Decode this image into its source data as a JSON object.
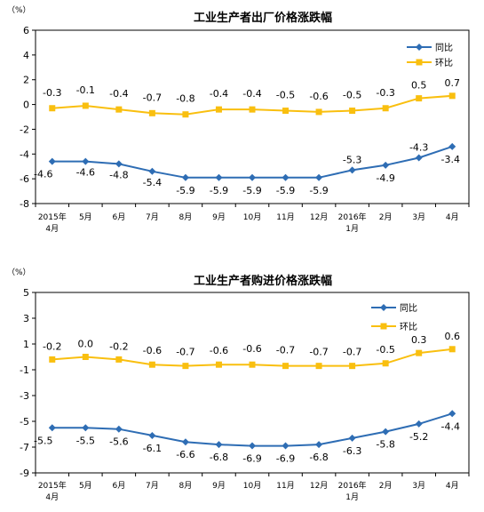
{
  "chart_data": [
    {
      "type": "line",
      "title": "工业生产者出厂价格涨跌幅",
      "unit_label": "（%）",
      "categories": [
        "2015年|4月",
        "5月",
        "6月",
        "7月",
        "8月",
        "9月",
        "10月",
        "11月",
        "12月",
        "2016年|1月",
        "2月",
        "3月",
        "4月"
      ],
      "ylim": [
        -8,
        6
      ],
      "yticks": [
        6,
        4,
        2,
        0,
        -2,
        -4,
        -6,
        -8
      ],
      "grid": false,
      "legend_position": "top-right",
      "series": [
        {
          "name": "同比",
          "color": "#2E6DB4",
          "values": [
            -4.6,
            -4.6,
            -4.8,
            -5.4,
            -5.9,
            -5.9,
            -5.9,
            -5.9,
            -5.9,
            -5.3,
            -4.9,
            -4.3,
            -3.4
          ],
          "labels": [
            "-4.6",
            "-4.6",
            "-4.8",
            "-5.4",
            "-5.9",
            "-5.9",
            "-5.9",
            "-5.9",
            "-5.9",
            "-5.3",
            "-4.9",
            "-4.3",
            "-3.4"
          ]
        },
        {
          "name": "环比",
          "color": "#F9BF0F",
          "values": [
            -0.3,
            -0.1,
            -0.4,
            -0.7,
            -0.8,
            -0.4,
            -0.4,
            -0.5,
            -0.6,
            -0.5,
            -0.3,
            0.5,
            0.7
          ],
          "labels": [
            "-0.3",
            "-0.1",
            "-0.4",
            "-0.7",
            "-0.8",
            "-0.4",
            "-0.4",
            "-0.5",
            "-0.6",
            "-0.5",
            "-0.3",
            "0.5",
            "0.7"
          ]
        }
      ]
    },
    {
      "type": "line",
      "title": "工业生产者购进价格涨跌幅",
      "unit_label": "（%）",
      "categories": [
        "2015年|4月",
        "5月",
        "6月",
        "7月",
        "8月",
        "9月",
        "10月",
        "11月",
        "12月",
        "2016年|1月",
        "2月",
        "3月",
        "4月"
      ],
      "ylim": [
        -9,
        5
      ],
      "yticks": [
        5,
        3,
        1,
        -1,
        -3,
        -5,
        -7,
        -9
      ],
      "grid": false,
      "legend_position": "top-right",
      "series": [
        {
          "name": "同比",
          "color": "#2E6DB4",
          "values": [
            -5.5,
            -5.5,
            -5.6,
            -6.1,
            -6.6,
            -6.8,
            -6.9,
            -6.9,
            -6.8,
            -6.3,
            -5.8,
            -5.2,
            -4.4
          ],
          "labels": [
            "-5.5",
            "-5.5",
            "-5.6",
            "-6.1",
            "-6.6",
            "-6.8",
            "-6.9",
            "-6.9",
            "-6.8",
            "-6.3",
            "-5.8",
            "-5.2",
            "-4.4"
          ]
        },
        {
          "name": "环比",
          "color": "#F9BF0F",
          "values": [
            -0.2,
            0.0,
            -0.2,
            -0.6,
            -0.7,
            -0.6,
            -0.6,
            -0.7,
            -0.7,
            -0.7,
            -0.5,
            0.3,
            0.6
          ],
          "labels": [
            "-0.2",
            "0.0",
            "-0.2",
            "-0.6",
            "-0.7",
            "-0.6",
            "-0.6",
            "-0.7",
            "-0.7",
            "-0.7",
            "-0.5",
            "0.3",
            "0.6"
          ]
        }
      ]
    }
  ]
}
